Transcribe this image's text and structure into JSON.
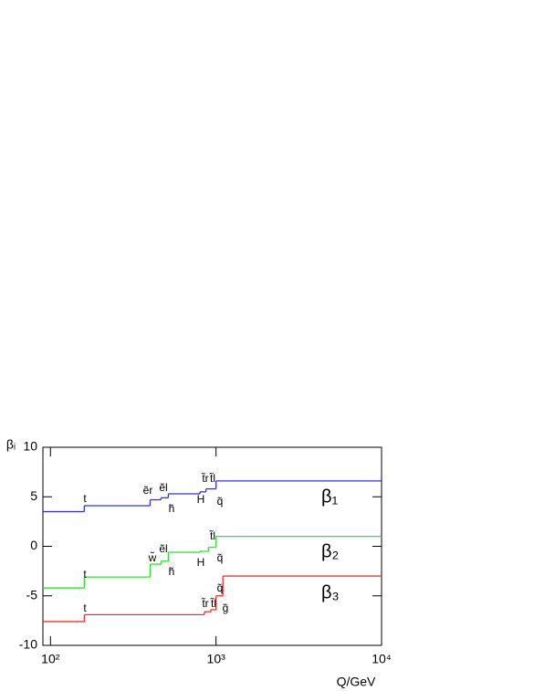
{
  "chart_data": {
    "type": "step",
    "xlabel": "Q/GeV",
    "ylabel": "βᵢ",
    "xlog": true,
    "xlim": [
      90,
      10000
    ],
    "xticks": [
      {
        "value": 100,
        "label": "10²"
      },
      {
        "value": 1000,
        "label": "10³"
      },
      {
        "value": 10000,
        "label": "10⁴"
      }
    ],
    "ylim": [
      -10,
      10
    ],
    "yticks": [
      -10,
      -5,
      0,
      5,
      10
    ],
    "series": [
      {
        "name": "β₁",
        "color": "#3333cc",
        "x": [
          90,
          160,
          400,
          465,
          515,
          800,
          870,
          1000
        ],
        "values": [
          3.5,
          4.1,
          4.7,
          4.9,
          5.3,
          5.5,
          5.8,
          6.6
        ],
        "annotations": [
          "t",
          "ẽr",
          "ẽl",
          "h̃",
          "H",
          "t̃r",
          "t̃l",
          "q̃"
        ]
      },
      {
        "name": "β₂",
        "color": "#33dd33",
        "x": [
          90,
          160,
          400,
          465,
          515,
          800,
          900,
          1000
        ],
        "values": [
          -4.2,
          -3.1,
          -1.8,
          -1.5,
          -0.6,
          -0.5,
          -0.1,
          1.0
        ],
        "annotations": [
          "t",
          "w̃",
          "ẽl",
          "h̃",
          "H",
          "t̃l",
          "q̃"
        ]
      },
      {
        "name": "β₃",
        "color": "#ee3333",
        "x": [
          90,
          160,
          850,
          930,
          1000,
          1100
        ],
        "values": [
          -7.6,
          -6.9,
          -6.6,
          -6.4,
          -5.0,
          -3.0
        ],
        "annotations": [
          "t",
          "t̃r",
          "t̃l",
          "q̃",
          "g̃"
        ]
      }
    ]
  }
}
